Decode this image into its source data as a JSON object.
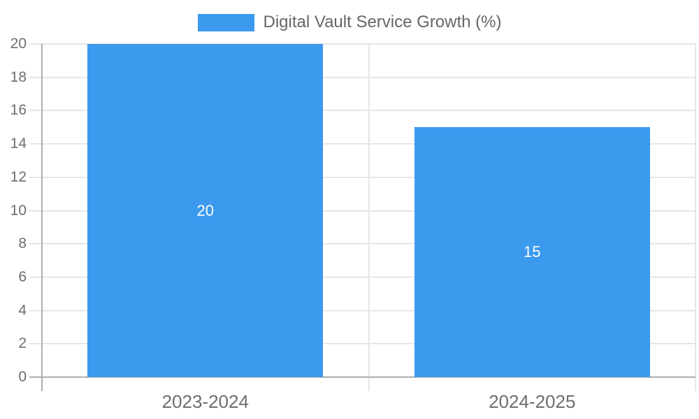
{
  "chart_data": {
    "type": "bar",
    "title": "",
    "legend_label": "Digital Vault Service Growth (%)",
    "legend_position": "top",
    "categories": [
      "2023-2024",
      "2024-2025"
    ],
    "values": [
      20,
      15
    ],
    "data_labels": [
      "20",
      "15"
    ],
    "xlabel": "",
    "ylabel": "",
    "ylim": [
      0,
      20
    ],
    "ytick_step": 2,
    "yticks": [
      "0",
      "2",
      "4",
      "6",
      "8",
      "10",
      "12",
      "14",
      "16",
      "18",
      "20"
    ],
    "grid": true,
    "colors": {
      "bar": "#3b99ee",
      "bar_label": "#ffffff",
      "axis_text": "#6e6e6e",
      "legend_text": "#666666",
      "gridline": "#e6e6e6",
      "axis_line": "#aeaeae"
    }
  }
}
